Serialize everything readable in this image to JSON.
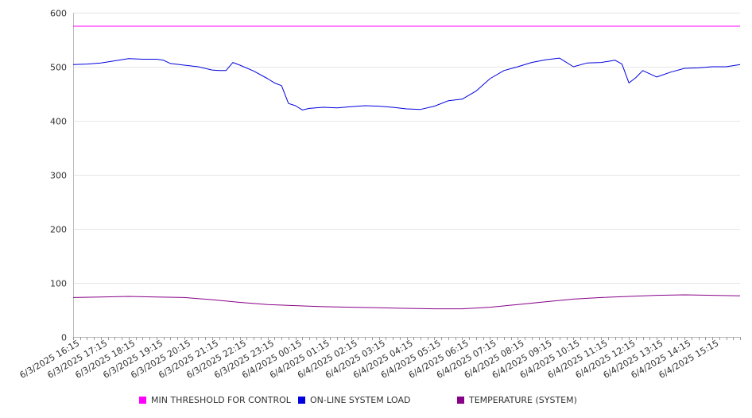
{
  "chart_data": {
    "type": "line",
    "title": "",
    "xlabel": "",
    "ylabel": "",
    "ylim": [
      0,
      600
    ],
    "yticks": [
      0,
      100,
      200,
      300,
      400,
      500,
      600
    ],
    "xlim": [
      "6/3/2025 16:00",
      "6/4/2025 16:00"
    ],
    "x_tick_labels": [
      "6/3/2025 16:15",
      "6/3/2025 17:15",
      "6/3/2025 18:15",
      "6/3/2025 19:15",
      "6/3/2025 20:15",
      "6/3/2025 21:15",
      "6/3/2025 22:15",
      "6/3/2025 23:15",
      "6/4/2025 00:15",
      "6/4/2025 01:15",
      "6/4/2025 02:15",
      "6/4/2025 03:15",
      "6/4/2025 04:15",
      "6/4/2025 05:15",
      "6/4/2025 06:15",
      "6/4/2025 07:15",
      "6/4/2025 08:15",
      "6/4/2025 09:15",
      "6/4/2025 10:15",
      "6/4/2025 11:15",
      "6/4/2025 12:15",
      "6/4/2025 13:15",
      "6/4/2025 14:15",
      "6/4/2025 15:15"
    ],
    "grid": true,
    "legend_position": "bottom",
    "series": [
      {
        "name": "MIN THRESHOLD FOR CONTROL",
        "color": "#ff00ff",
        "x": [
          "6/3/2025 16:00",
          "6/4/2025 16:00"
        ],
        "y": [
          575,
          575
        ]
      },
      {
        "name": "ON-LINE SYSTEM LOAD",
        "color": "#0000dd",
        "x": [
          "6/3/2025 16:00",
          "6/3/2025 16:30",
          "6/3/2025 17:00",
          "6/3/2025 17:30",
          "6/3/2025 18:00",
          "6/3/2025 18:30",
          "6/3/2025 19:00",
          "6/3/2025 19:15",
          "6/3/2025 19:30",
          "6/3/2025 20:00",
          "6/3/2025 20:30",
          "6/3/2025 21:00",
          "6/3/2025 21:15",
          "6/3/2025 21:30",
          "6/3/2025 21:45",
          "6/3/2025 22:00",
          "6/3/2025 22:30",
          "6/3/2025 23:00",
          "6/3/2025 23:15",
          "6/3/2025 23:30",
          "6/3/2025 23:45",
          "6/4/2025 00:00",
          "6/4/2025 00:15",
          "6/4/2025 00:30",
          "6/4/2025 01:00",
          "6/4/2025 01:30",
          "6/4/2025 02:00",
          "6/4/2025 02:30",
          "6/4/2025 03:00",
          "6/4/2025 03:30",
          "6/4/2025 04:00",
          "6/4/2025 04:30",
          "6/4/2025 05:00",
          "6/4/2025 05:30",
          "6/4/2025 06:00",
          "6/4/2025 06:30",
          "6/4/2025 07:00",
          "6/4/2025 07:30",
          "6/4/2025 08:00",
          "6/4/2025 08:30",
          "6/4/2025 09:00",
          "6/4/2025 09:30",
          "6/4/2025 10:00",
          "6/4/2025 10:30",
          "6/4/2025 11:00",
          "6/4/2025 11:15",
          "6/4/2025 11:30",
          "6/4/2025 11:45",
          "6/4/2025 12:00",
          "6/4/2025 12:15",
          "6/4/2025 12:30",
          "6/4/2025 13:00",
          "6/4/2025 13:30",
          "6/4/2025 14:00",
          "6/4/2025 14:30",
          "6/4/2025 15:00",
          "6/4/2025 15:30",
          "6/4/2025 16:00"
        ],
        "y": [
          504,
          505,
          507,
          511,
          515,
          514,
          514,
          512,
          506,
          503,
          500,
          494,
          493,
          493,
          508,
          503,
          492,
          478,
          470,
          465,
          432,
          428,
          420,
          423,
          425,
          424,
          426,
          428,
          427,
          425,
          422,
          421,
          427,
          437,
          440,
          455,
          478,
          493,
          500,
          508,
          513,
          516,
          500,
          507,
          508,
          510,
          512,
          505,
          470,
          480,
          493,
          481,
          490,
          497,
          498,
          500,
          500,
          504
        ]
      },
      {
        "name": "TEMPERATURE (SYSTEM)",
        "color": "#880088",
        "x": [
          "6/3/2025 16:00",
          "6/3/2025 17:00",
          "6/3/2025 18:00",
          "6/3/2025 19:00",
          "6/3/2025 20:00",
          "6/3/2025 21:00",
          "6/3/2025 22:00",
          "6/3/2025 23:00",
          "6/4/2025 00:00",
          "6/4/2025 01:00",
          "6/4/2025 02:00",
          "6/4/2025 03:00",
          "6/4/2025 04:00",
          "6/4/2025 05:00",
          "6/4/2025 06:00",
          "6/4/2025 07:00",
          "6/4/2025 08:00",
          "6/4/2025 09:00",
          "6/4/2025 10:00",
          "6/4/2025 11:00",
          "6/4/2025 12:00",
          "6/4/2025 13:00",
          "6/4/2025 14:00",
          "6/4/2025 15:00",
          "6/4/2025 16:00"
        ],
        "y": [
          73,
          74,
          75,
          74,
          73,
          69,
          64,
          60,
          58,
          56,
          55,
          54,
          53,
          52,
          52,
          55,
          60,
          65,
          70,
          73,
          75,
          77,
          78,
          77,
          76
        ]
      }
    ]
  }
}
